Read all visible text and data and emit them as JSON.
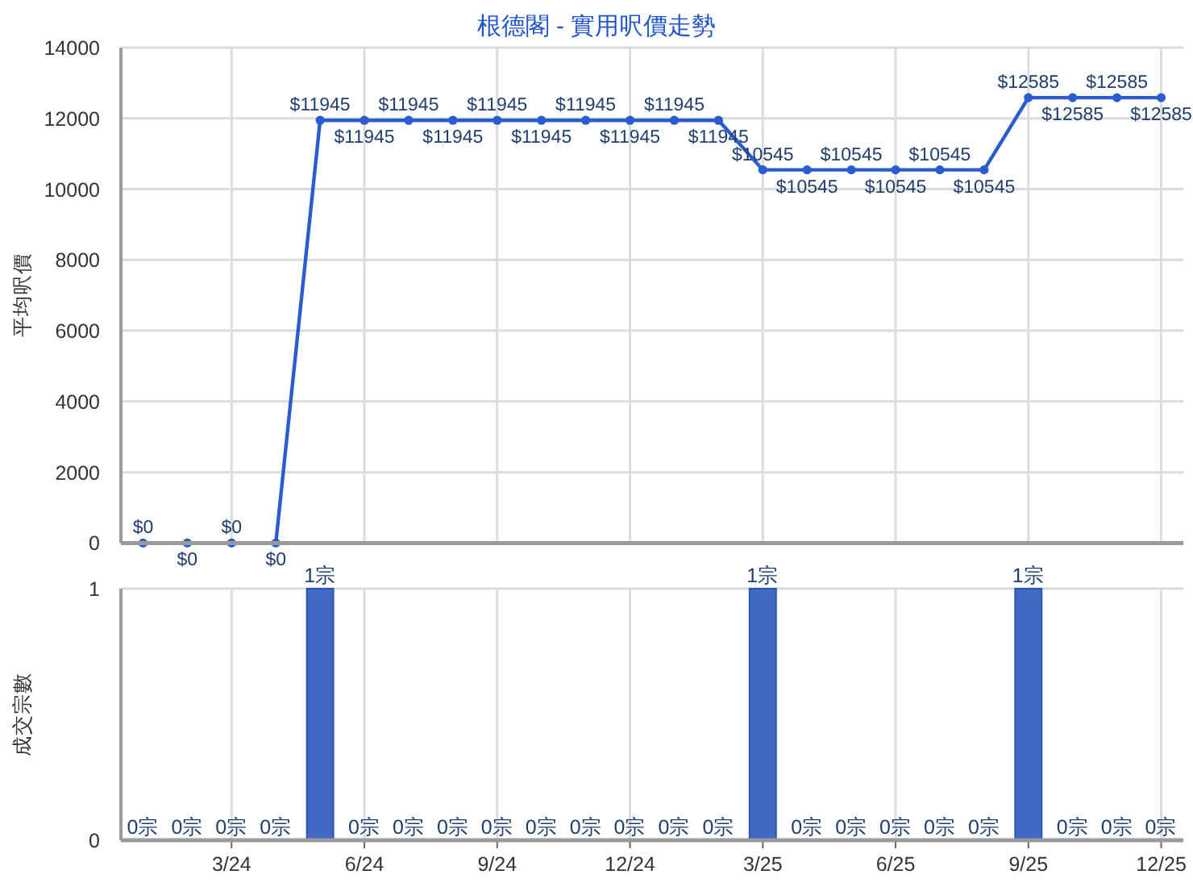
{
  "chart_data": [
    {
      "type": "line",
      "title": "根德閣 - 實用呎價走勢",
      "ylabel": "平均呎價",
      "categories": [
        null,
        null,
        null,
        null,
        null,
        null,
        null,
        null,
        null,
        null,
        null,
        null,
        null,
        null,
        null,
        null,
        null,
        null,
        null,
        null,
        null,
        null,
        null,
        null
      ],
      "values": [
        0,
        0,
        0,
        0,
        11945,
        11945,
        11945,
        11945,
        11945,
        11945,
        11945,
        11945,
        11945,
        11945,
        10545,
        10545,
        10545,
        10545,
        10545,
        10545,
        12585,
        12585,
        12585,
        12585
      ],
      "value_labels": [
        "$0",
        "$0",
        "$0",
        "$0",
        "$11945",
        "$11945",
        "$11945",
        "$11945",
        "$11945",
        "$11945",
        "$11945",
        "$11945",
        "$11945",
        "$11945",
        "$10545",
        "$10545",
        "$10545",
        "$10545",
        "$10545",
        "$10545",
        "$12585",
        "$12585",
        "$12585",
        "$12585"
      ],
      "color": "#2a5cd0",
      "ylim": [
        0,
        14000
      ],
      "yticks": [
        0,
        2000,
        4000,
        6000,
        8000,
        10000,
        12000,
        14000
      ],
      "grid": true,
      "marker": "circle",
      "line_style": "solid",
      "tick_labels": "y"
    },
    {
      "type": "bar",
      "ylabel": "成交宗數",
      "categories": [
        null,
        null,
        "3/24",
        null,
        null,
        "6/24",
        null,
        null,
        "9/24",
        null,
        null,
        "12/24",
        null,
        null,
        "3/25",
        null,
        null,
        "6/25",
        null,
        null,
        "9/25",
        null,
        null,
        "12/25"
      ],
      "values": [
        0,
        0,
        0,
        0,
        1,
        0,
        0,
        0,
        0,
        0,
        0,
        0,
        0,
        0,
        1,
        0,
        0,
        0,
        0,
        0,
        1,
        0,
        0,
        0
      ],
      "value_labels": [
        "0宗",
        "0宗",
        "0宗",
        "0宗",
        "1宗",
        "0宗",
        "0宗",
        "0宗",
        "0宗",
        "0宗",
        "0宗",
        "0宗",
        "0宗",
        "0宗",
        "1宗",
        "0宗",
        "0宗",
        "0宗",
        "0宗",
        "0宗",
        "1宗",
        "0宗",
        "0宗",
        "0宗"
      ],
      "color": "#4169c4",
      "ylim": [
        0,
        1
      ],
      "yticks": [
        0,
        1
      ],
      "grid": true
    }
  ]
}
